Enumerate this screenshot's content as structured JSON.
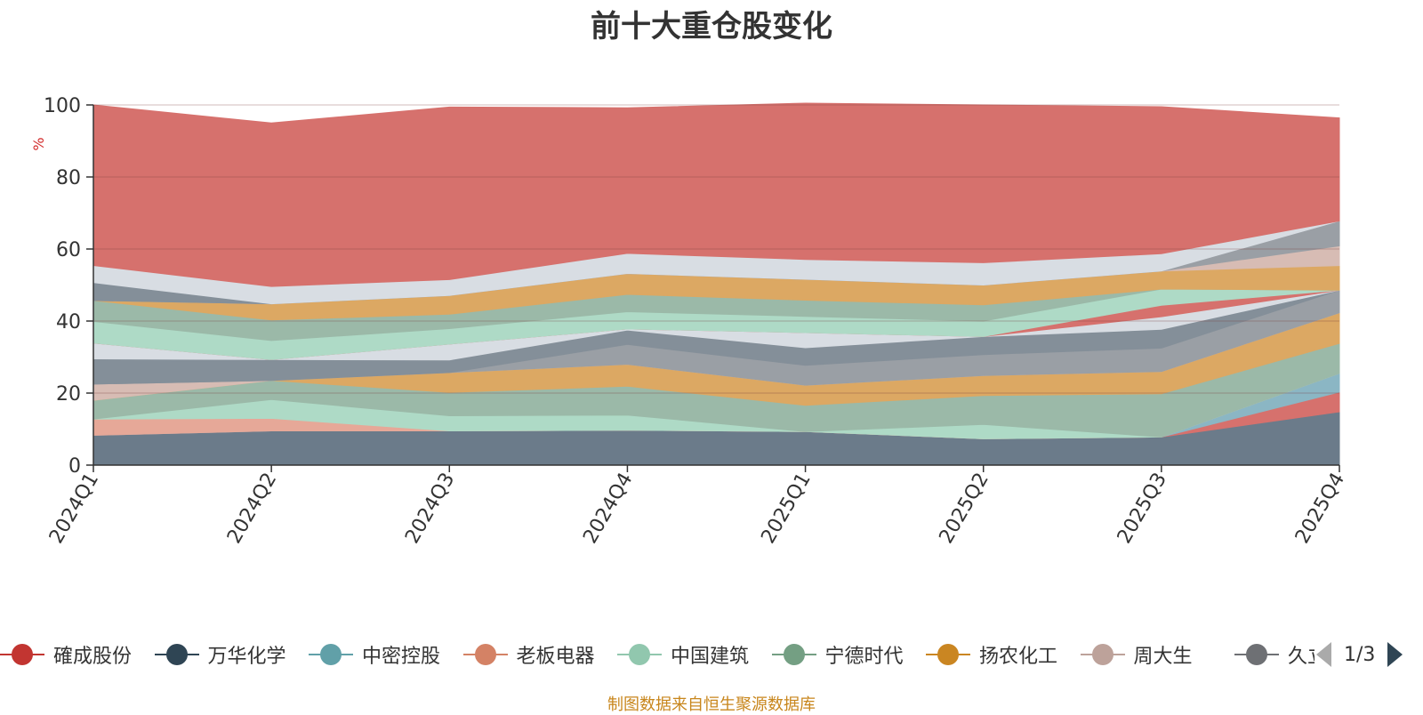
{
  "chart_data": {
    "type": "area",
    "title": "前十大重仓股变化",
    "ylabel": "%",
    "ylim": [
      0,
      100
    ],
    "y_ticks": [
      "0",
      "20",
      "40",
      "60",
      "80",
      "100"
    ],
    "grid": true,
    "stacked": true,
    "categories": [
      "2024Q1",
      "2024Q2",
      "2024Q3",
      "2024Q4",
      "2025Q1",
      "2025Q2",
      "2025Q3",
      "2025Q4"
    ],
    "series": [
      {
        "name": "",
        "color": "#6b7b8a",
        "values": [
          8.3,
          9.5,
          9.5,
          9.7,
          9.3,
          7.3,
          7.8,
          14.8
        ]
      },
      {
        "name": "",
        "color": "#d6716d",
        "values": [
          0,
          0,
          0,
          0,
          0,
          0,
          0,
          5.5
        ]
      },
      {
        "name": "",
        "color": "#8bb6c4",
        "values": [
          0,
          0,
          0,
          0,
          0,
          0,
          0,
          5.2
        ]
      },
      {
        "name": "",
        "color": "#e6a898",
        "values": [
          4.5,
          3.5,
          0,
          0,
          0,
          0,
          0,
          0
        ]
      },
      {
        "name": "",
        "color": "#aedac6",
        "values": [
          0,
          5.2,
          4.2,
          4.2,
          0,
          4.0,
          0,
          0
        ]
      },
      {
        "name": "",
        "color": "#9bb9a8",
        "values": [
          5.2,
          5.3,
          6.5,
          8.0,
          7.3,
          8.0,
          12.0,
          8.3
        ]
      },
      {
        "name": "",
        "color": "#dca863",
        "values": [
          0,
          0,
          5.5,
          6.1,
          5.6,
          5.6,
          6.2,
          8.5
        ]
      },
      {
        "name": "",
        "color": "#d7bcb4",
        "values": [
          4.5,
          0,
          0,
          0,
          0,
          0,
          0,
          0
        ]
      },
      {
        "name": "",
        "color": "#9a9fa5",
        "values": [
          0,
          0,
          0,
          5.5,
          5.5,
          5.8,
          6.5,
          6.3
        ]
      },
      {
        "name": "",
        "color": "#848f99",
        "values": [
          7.0,
          5.8,
          3.5,
          4.0,
          4.9,
          5.0,
          5.2,
          0
        ]
      },
      {
        "name": "",
        "color": "#d8dde3",
        "values": [
          4.4,
          0,
          4.4,
          0.3,
          4.2,
          0,
          3.5,
          0
        ]
      },
      {
        "name": "",
        "color": "#d6716d",
        "values": [
          0,
          0,
          0,
          0,
          0,
          0,
          3.2,
          0
        ]
      },
      {
        "name": "",
        "color": "#aedac6",
        "values": [
          6.0,
          5.3,
          4.3,
          4.8,
          4.5,
          4.3,
          4.5,
          0
        ]
      },
      {
        "name": "",
        "color": "#9bb9a8",
        "values": [
          5.8,
          5.7,
          4.0,
          4.8,
          4.5,
          4.5,
          0,
          0
        ]
      },
      {
        "name": "",
        "color": "#dca863",
        "values": [
          0,
          4.5,
          5.2,
          5.8,
          5.8,
          5.5,
          5.0,
          6.8
        ]
      },
      {
        "name": "",
        "color": "#d7bcb4",
        "values": [
          0,
          0,
          0,
          0,
          0,
          0,
          0,
          5.5
        ]
      },
      {
        "name": "",
        "color": "#9a9fa5",
        "values": [
          0,
          0,
          0,
          0,
          0,
          0,
          0,
          6.9
        ]
      },
      {
        "name": "",
        "color": "#848f99",
        "values": [
          5.0,
          0,
          0,
          0,
          0,
          0,
          0,
          0
        ]
      },
      {
        "name": "",
        "color": "#d8dde3",
        "values": [
          4.7,
          4.8,
          4.4,
          5.6,
          5.5,
          6.2,
          4.8,
          0
        ]
      },
      {
        "name": "",
        "color": "#d6716d",
        "values": [
          44.6,
          45.4,
          47.9,
          40.4,
          43.4,
          43.8,
          40.8,
          28.6
        ]
      }
    ]
  },
  "legend": {
    "items": [
      {
        "label": "確成股份",
        "color": "#c23531"
      },
      {
        "label": "万华化学",
        "color": "#2f4554"
      },
      {
        "label": "中密控股",
        "color": "#61a0a8"
      },
      {
        "label": "老板电器",
        "color": "#d48265"
      },
      {
        "label": "中国建筑",
        "color": "#91c7ae"
      },
      {
        "label": "宁德时代",
        "color": "#749f83"
      },
      {
        "label": "扬农化工",
        "color": "#ca8622"
      },
      {
        "label": "周大生",
        "color": "#bda29a"
      },
      {
        "label": "久立特材",
        "color": "#6e7074"
      }
    ],
    "page_text": "1/3"
  },
  "source_note": "制图数据来自恒生聚源数据库"
}
